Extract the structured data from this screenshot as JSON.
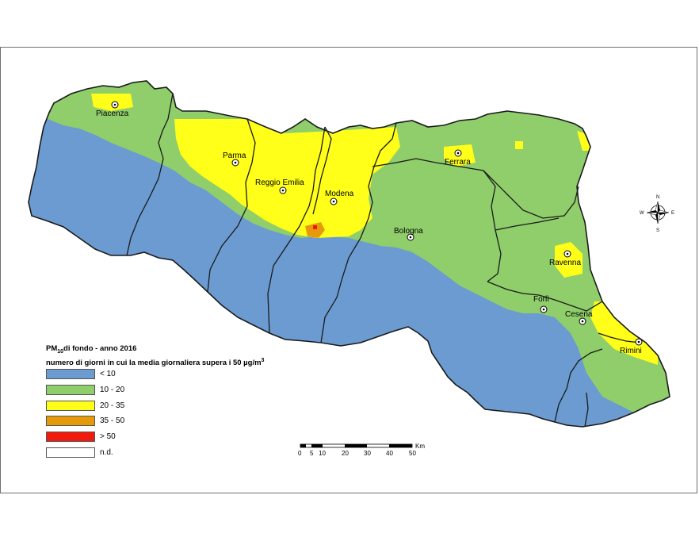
{
  "legend": {
    "title_main": "PM",
    "title_sub": "10",
    "title_rest": "di fondo - anno 2016",
    "subtitle": "numero di giorni in cui la media giornaliera supera i 50 µg/m",
    "subtitle_sup": "3",
    "items": [
      {
        "label": "< 10",
        "color": "#6b9bd1"
      },
      {
        "label": "10 - 20",
        "color": "#8fce6a"
      },
      {
        "label": "20 - 35",
        "color": "#ffff1a"
      },
      {
        "label": "35 - 50",
        "color": "#e69a0a"
      },
      {
        "label": "> 50",
        "color": "#f21a0c"
      },
      {
        "label": "n.d.",
        "color": "#ffffff"
      }
    ]
  },
  "cities": [
    "Piacenza",
    "Parma",
    "Reggio Emilia",
    "Modena",
    "Ferrara",
    "Bologna",
    "Ravenna",
    "Forlì",
    "Cesena",
    "Rimini"
  ],
  "scalebar": {
    "unit": "Km",
    "ticks": [
      "0",
      "5",
      "10",
      "20",
      "30",
      "40",
      "50"
    ]
  },
  "compass": {
    "n": "N",
    "s": "S",
    "e": "E",
    "w": "W"
  }
}
